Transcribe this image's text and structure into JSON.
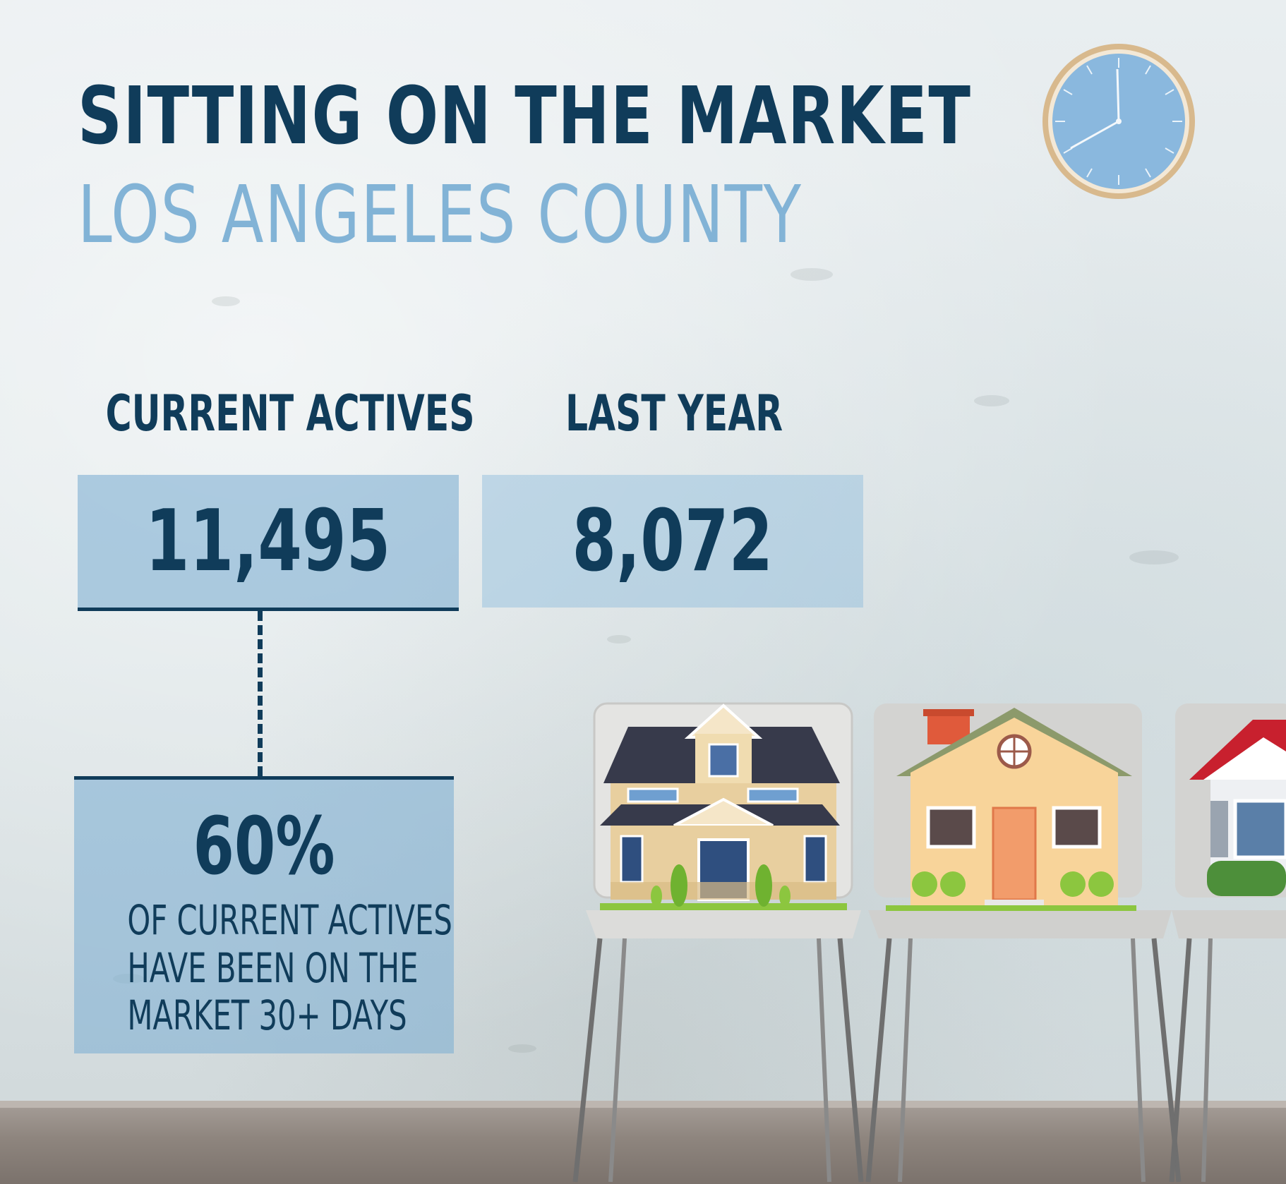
{
  "header": {
    "title": "SITTING ON THE MARKET",
    "subtitle": "LOS ANGELES COUNTY"
  },
  "stats": {
    "current_label": "CURRENT ACTIVES",
    "current_value": "11,495",
    "last_year_label": "LAST YEAR",
    "last_year_value": "8,072"
  },
  "callout": {
    "percent": "60%",
    "line1": "OF CURRENT ACTIVES",
    "line2": "HAVE BEEN ON THE",
    "line3": "MARKET 30+ DAYS"
  },
  "colors": {
    "navy": "#103c5a",
    "light_blue": "#82b3d6",
    "box_blue": "#9dc2dd"
  },
  "icons": [
    "wall-clock-icon",
    "chair-icon",
    "house-icon"
  ]
}
